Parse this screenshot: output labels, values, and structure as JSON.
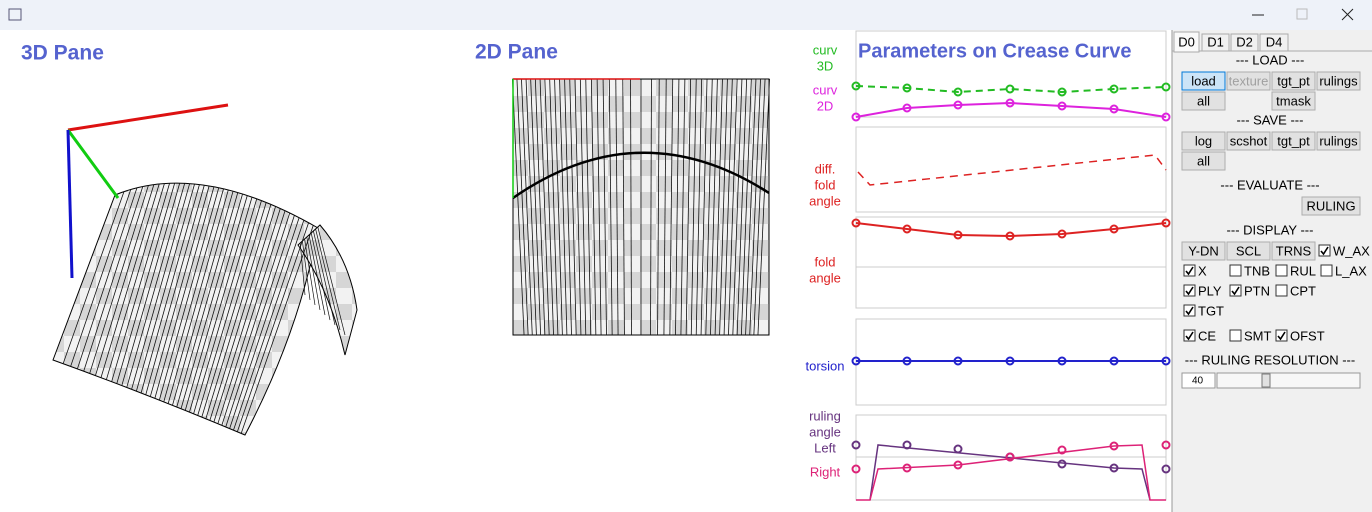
{
  "panes": {
    "pane_3d": "3D Pane",
    "pane_2d": "2D Pane",
    "params": "Parameters on Crease Curve"
  },
  "param_labels": [
    {
      "lines": [
        "curv",
        "3D"
      ],
      "color": "#22bb22"
    },
    {
      "lines": [
        "curv",
        "2D"
      ],
      "color": "#dd22dd"
    },
    {
      "lines": [
        "diff.",
        "fold",
        "angle"
      ],
      "color": "#dd2222"
    },
    {
      "lines": [
        "fold",
        "angle"
      ],
      "color": "#dd2222"
    },
    {
      "lines": [
        "torsion"
      ],
      "color": "#2222cc"
    },
    {
      "lines": [
        "ruling",
        "angle",
        "Left"
      ],
      "color": "#66337f"
    },
    {
      "lines": [
        "Right"
      ],
      "color": "#dd2277"
    }
  ],
  "panel": {
    "tabs": [
      "D0",
      "D1",
      "D2",
      "D4"
    ],
    "headings": [
      "--- LOAD ---",
      "--- SAVE ---",
      "--- EVALUATE ---",
      "--- DISPLAY ---",
      "--- RULING RESOLUTION ---"
    ],
    "buttons": [
      {
        "text": "load",
        "pressed": true
      },
      {
        "text": "texture",
        "disabled": true
      },
      {
        "text": "tgt_pt"
      },
      {
        "text": "rulings"
      },
      {
        "text": "all"
      },
      {
        "text": "tmask"
      },
      {
        "text": "log"
      },
      {
        "text": "scshot"
      },
      {
        "text": "tgt_pt"
      },
      {
        "text": "rulings"
      },
      {
        "text": "all"
      },
      {
        "text": "RULING"
      },
      {
        "text": "Y-DN"
      },
      {
        "text": "SCL"
      },
      {
        "text": "TRNS"
      }
    ],
    "checkboxes": [
      {
        "text": "W_AX",
        "checked": true
      },
      {
        "text": "X",
        "checked": true
      },
      {
        "text": "TNB",
        "checked": false
      },
      {
        "text": "RUL",
        "checked": false
      },
      {
        "text": "L_AX",
        "checked": false
      },
      {
        "text": "PLY",
        "checked": true
      },
      {
        "text": "PTN",
        "checked": true
      },
      {
        "text": "CPT",
        "checked": false
      },
      {
        "text": "TGT",
        "checked": true
      },
      {
        "text": "CE",
        "checked": true
      },
      {
        "text": "SMT",
        "checked": false
      },
      {
        "text": "OFST",
        "checked": true
      }
    ],
    "resolution": 40
  }
}
